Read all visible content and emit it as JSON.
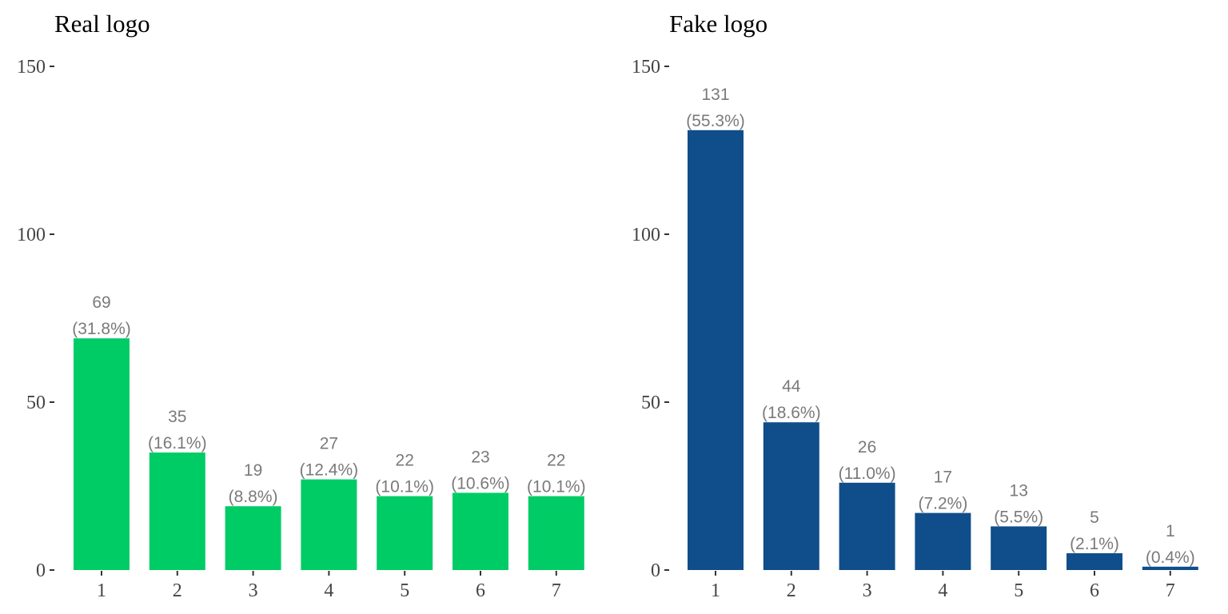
{
  "chart_data": [
    {
      "type": "bar",
      "title": "Real logo",
      "xlabel": "",
      "ylabel": "",
      "categories": [
        "1",
        "2",
        "3",
        "4",
        "5",
        "6",
        "7"
      ],
      "values": [
        69,
        35,
        19,
        27,
        22,
        23,
        22
      ],
      "value_labels": [
        "69",
        "35",
        "19",
        "27",
        "22",
        "23",
        "22"
      ],
      "percent_labels": [
        "(31.8%)",
        "(16.1%)",
        "(8.8%)",
        "(12.4%)",
        "(10.1%)",
        "(10.6%)",
        "(10.1%)"
      ],
      "ylim": [
        0,
        150
      ],
      "yticks": [
        0,
        50,
        100,
        150
      ],
      "ytick_labels": [
        "0",
        "50",
        "100",
        "150"
      ],
      "grid": false,
      "legend": "none",
      "bar_color": "#00cc66"
    },
    {
      "type": "bar",
      "title": "Fake logo",
      "xlabel": "",
      "ylabel": "",
      "categories": [
        "1",
        "2",
        "3",
        "4",
        "5",
        "6",
        "7"
      ],
      "values": [
        131,
        44,
        26,
        17,
        13,
        5,
        1
      ],
      "value_labels": [
        "131",
        "44",
        "26",
        "17",
        "13",
        "5",
        "1"
      ],
      "percent_labels": [
        "(55.3%)",
        "(18.6%)",
        "(11.0%)",
        "(7.2%)",
        "(5.5%)",
        "(2.1%)",
        "(0.4%)"
      ],
      "ylim": [
        0,
        150
      ],
      "yticks": [
        0,
        50,
        100,
        150
      ],
      "ytick_labels": [
        "0",
        "50",
        "100",
        "150"
      ],
      "grid": false,
      "legend": "none",
      "bar_color": "#0f4e8a"
    }
  ]
}
